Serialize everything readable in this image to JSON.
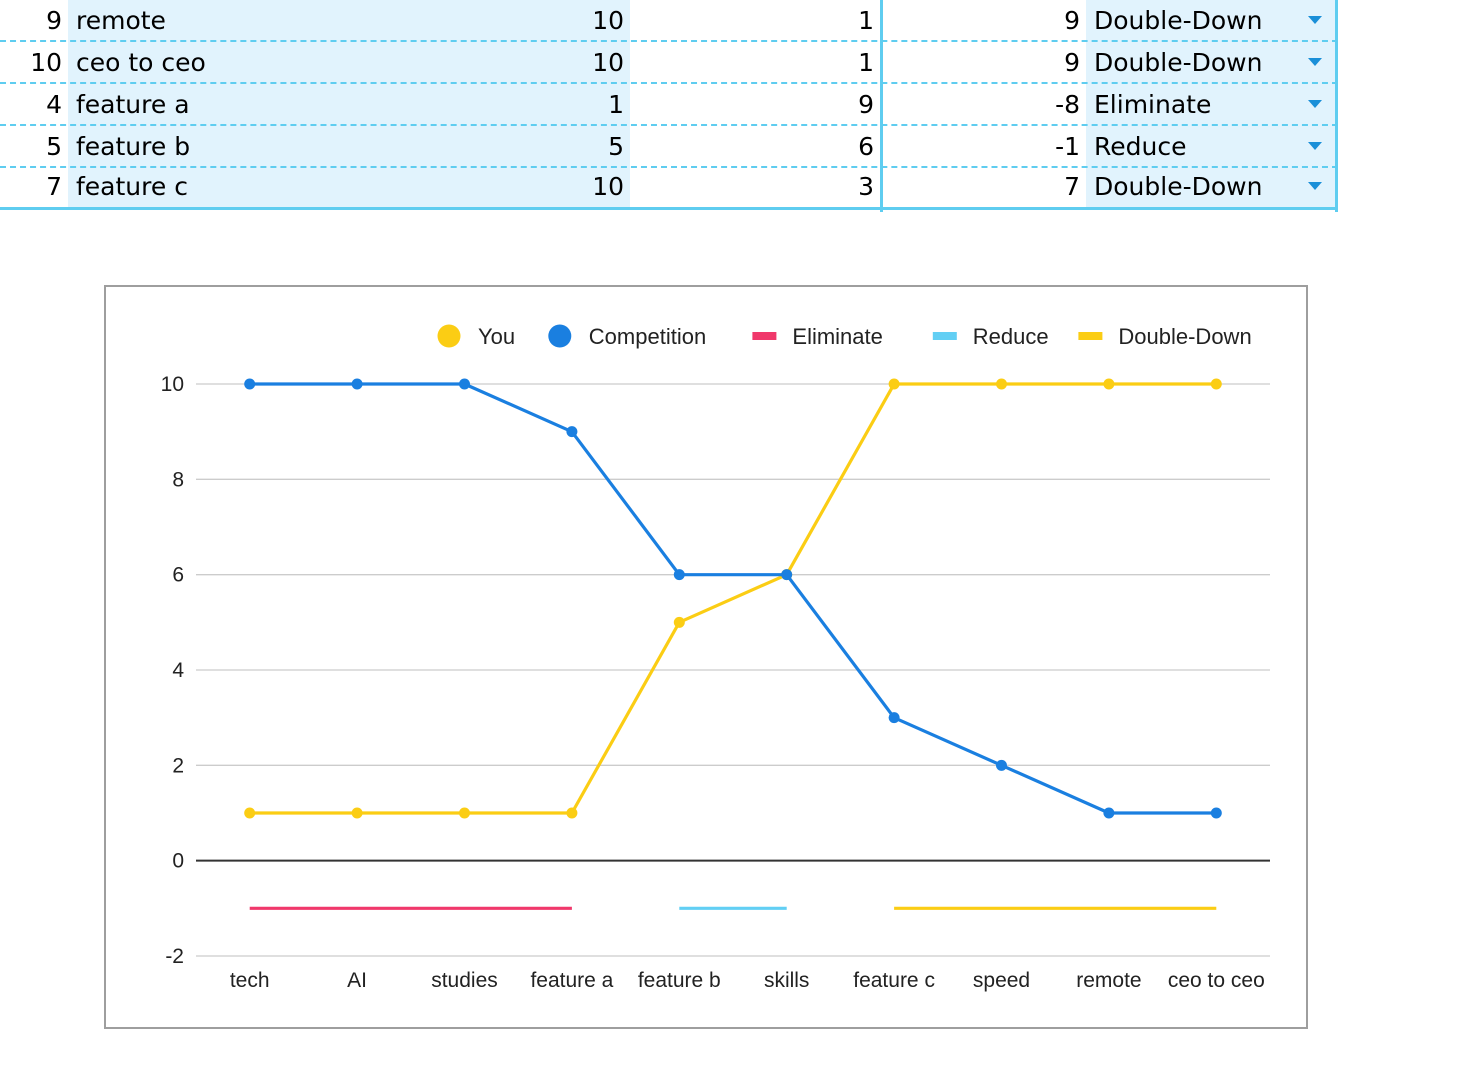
{
  "sheet": {
    "rows": [
      {
        "num": "9",
        "name": "remote",
        "you": "10",
        "competition": "1",
        "diff": "9",
        "strategy": "Double-Down"
      },
      {
        "num": "10",
        "name": "ceo to ceo",
        "you": "10",
        "competition": "1",
        "diff": "9",
        "strategy": "Double-Down"
      },
      {
        "num": "4",
        "name": "feature a",
        "you": "1",
        "competition": "9",
        "diff": "-8",
        "strategy": "Eliminate"
      },
      {
        "num": "5",
        "name": "feature b",
        "you": "5",
        "competition": "6",
        "diff": "-1",
        "strategy": "Reduce"
      },
      {
        "num": "7",
        "name": "feature c",
        "you": "10",
        "competition": "3",
        "diff": "7",
        "strategy": "Double-Down"
      }
    ]
  },
  "chart_data": {
    "type": "line",
    "categories": [
      "tech",
      "AI",
      "studies",
      "feature a",
      "feature b",
      "skills",
      "feature c",
      "speed",
      "remote",
      "ceo to ceo"
    ],
    "series": [
      {
        "name": "You",
        "color": "#fbcd14",
        "marker": "circle",
        "values": [
          1,
          1,
          1,
          1,
          5,
          6,
          10,
          10,
          10,
          10
        ]
      },
      {
        "name": "Competition",
        "color": "#1a7fe0",
        "marker": "circle",
        "values": [
          10,
          10,
          10,
          9,
          6,
          6,
          3,
          2,
          1,
          1
        ]
      },
      {
        "name": "Eliminate",
        "color": "#f0386b",
        "marker": "line",
        "values": [
          -1,
          -1,
          -1,
          -1,
          null,
          null,
          null,
          null,
          null,
          null
        ]
      },
      {
        "name": "Reduce",
        "color": "#62cff4",
        "marker": "line",
        "values": [
          null,
          null,
          null,
          null,
          -1,
          -1,
          null,
          null,
          null,
          null
        ]
      },
      {
        "name": "Double-Down",
        "color": "#fbcd14",
        "marker": "line",
        "values": [
          null,
          null,
          null,
          null,
          null,
          null,
          -1,
          -1,
          -1,
          -1
        ]
      }
    ],
    "y_ticks": [
      "-2",
      "0",
      "2",
      "4",
      "6",
      "8",
      "10"
    ],
    "ylim": [
      -2,
      10
    ],
    "legend_position": "top-right",
    "grid": true
  }
}
